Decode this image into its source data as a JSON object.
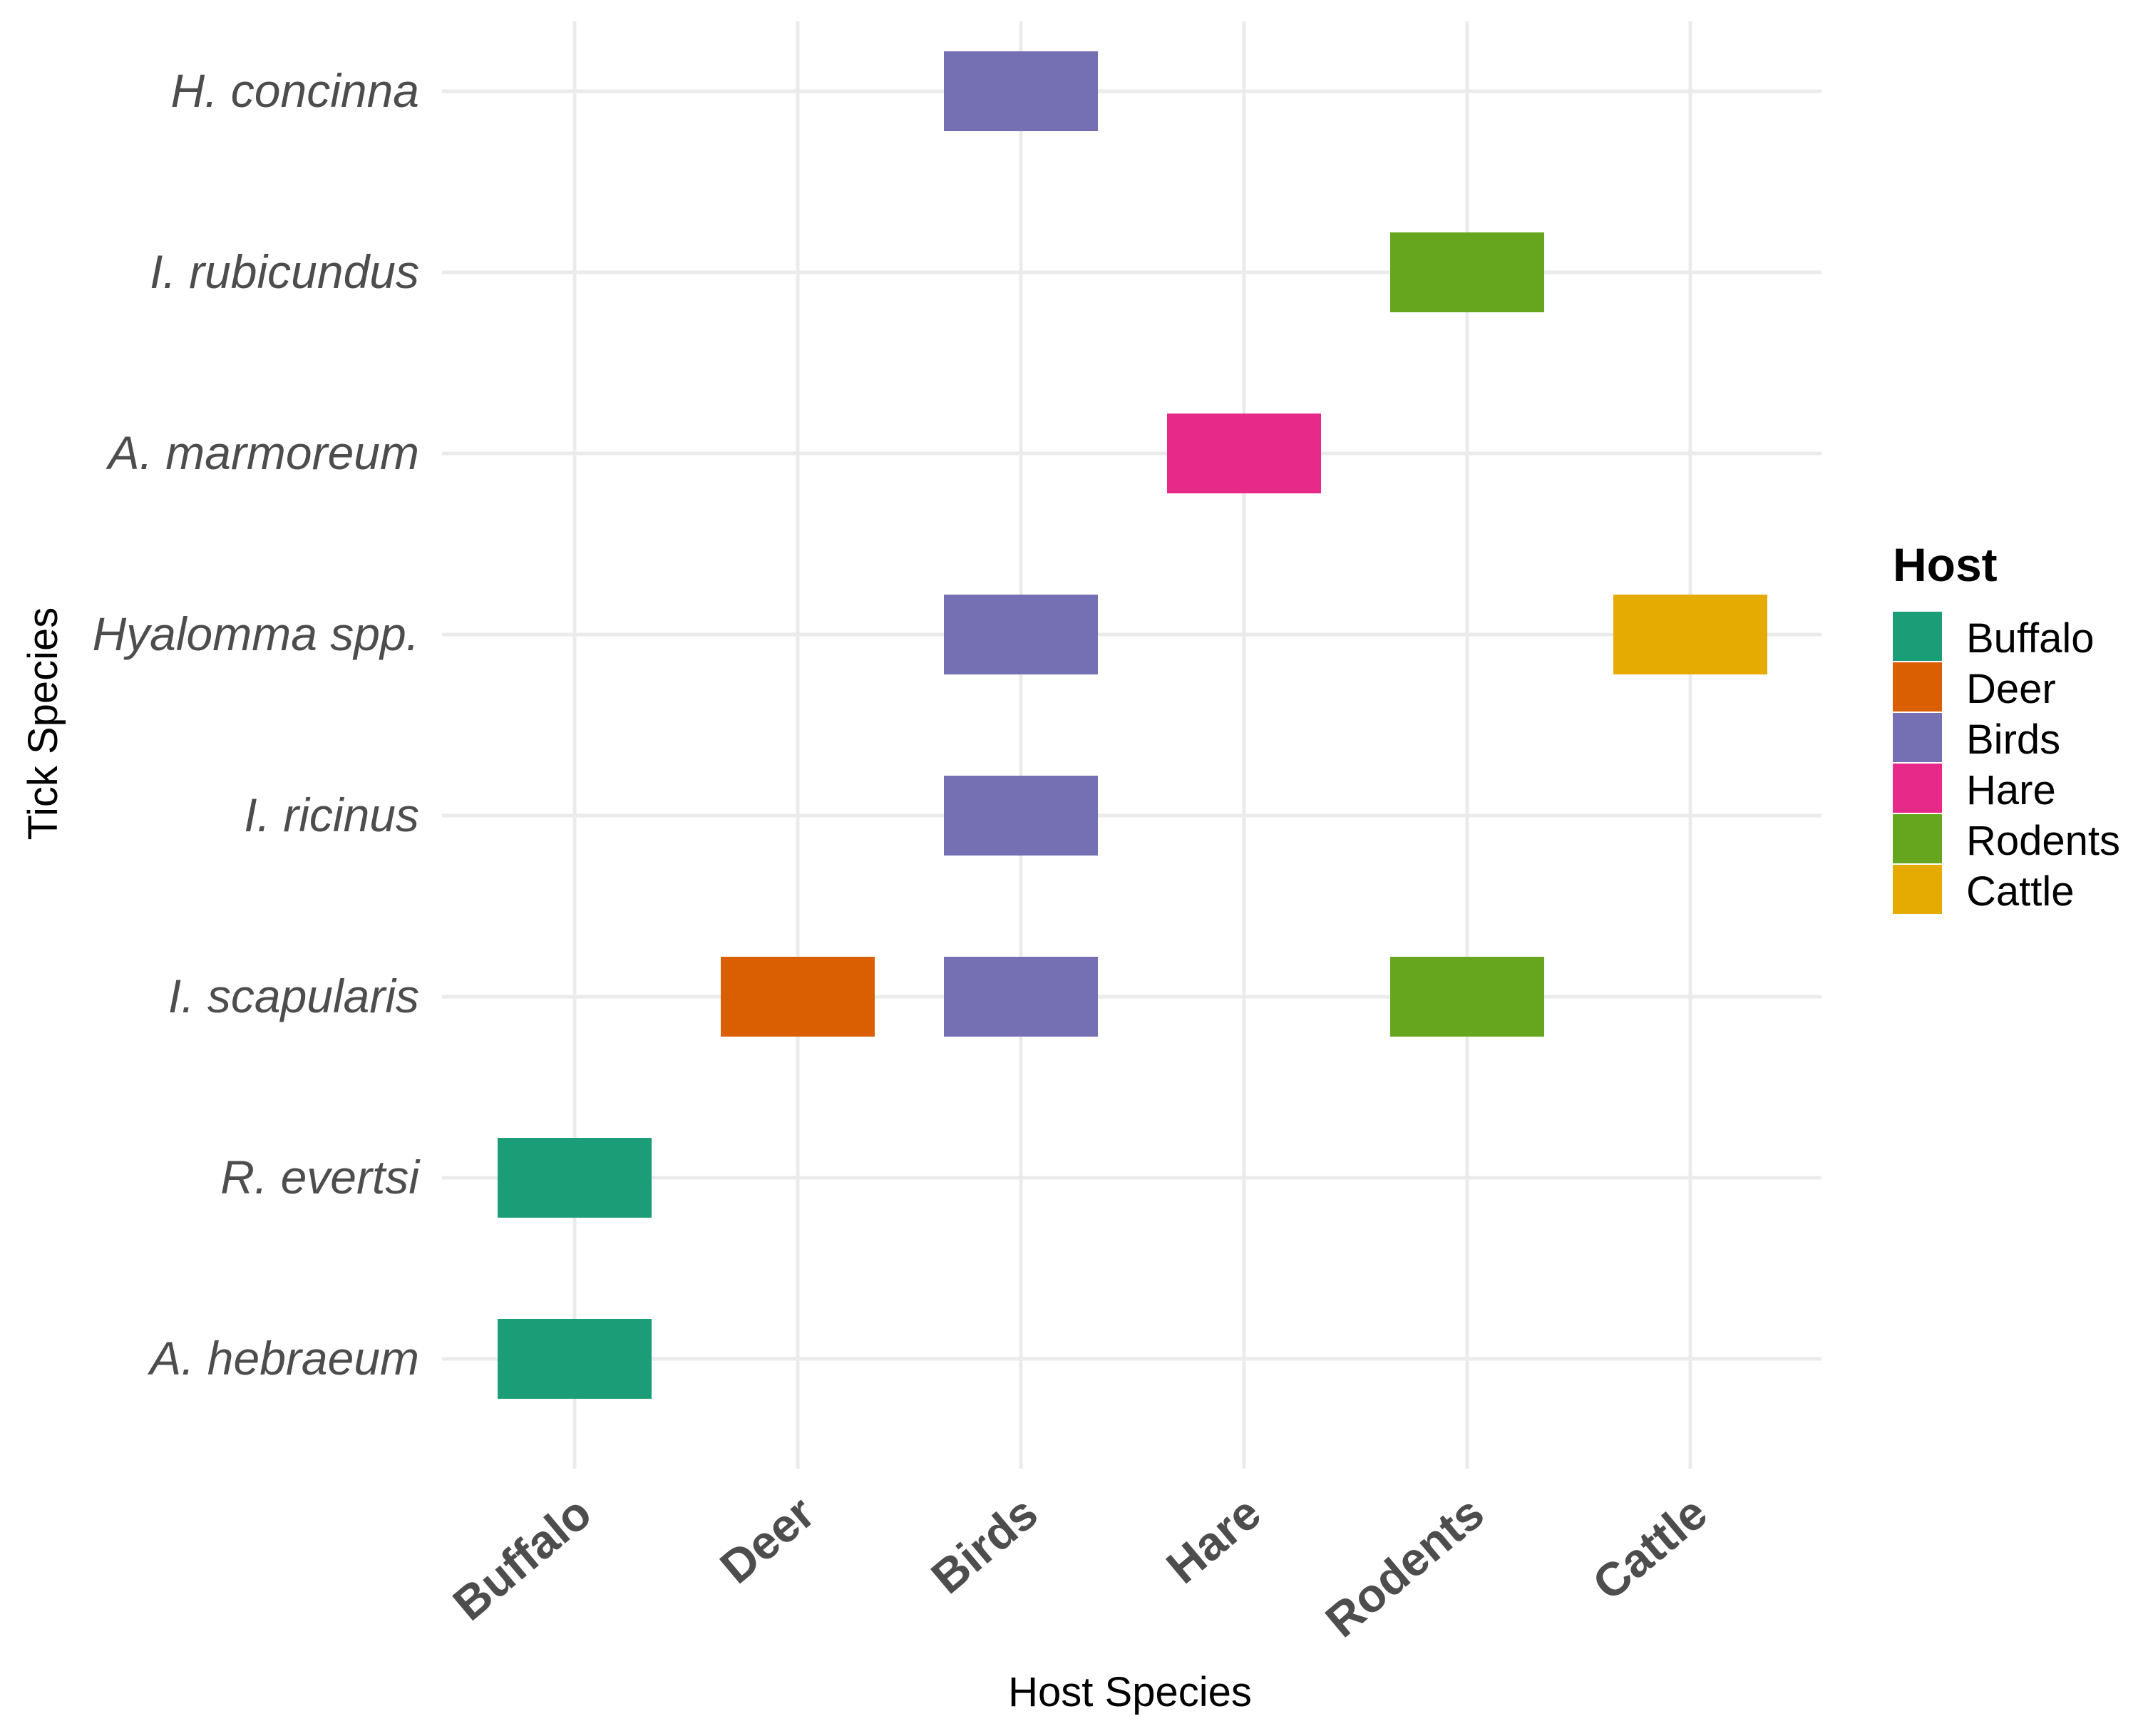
{
  "chart_data": {
    "type": "tile",
    "title": "",
    "xlabel": "Host Species",
    "ylabel": "Tick Species",
    "x_categories": [
      "Buffalo",
      "Deer",
      "Birds",
      "Hare",
      "Rodents",
      "Cattle"
    ],
    "y_categories": [
      "A. hebraeum",
      "R. evertsi",
      "I. scapularis",
      "I. ricinus",
      "Hyalomma spp.",
      "A. marmoreum",
      "I. rubicundus",
      "H. concinna"
    ],
    "points": [
      {
        "tick": "H. concinna",
        "host": "Birds"
      },
      {
        "tick": "I. rubicundus",
        "host": "Rodents"
      },
      {
        "tick": "A. marmoreum",
        "host": "Hare"
      },
      {
        "tick": "Hyalomma spp.",
        "host": "Birds"
      },
      {
        "tick": "Hyalomma spp.",
        "host": "Cattle"
      },
      {
        "tick": "I. ricinus",
        "host": "Birds"
      },
      {
        "tick": "I. scapularis",
        "host": "Deer"
      },
      {
        "tick": "I. scapularis",
        "host": "Birds"
      },
      {
        "tick": "I. scapularis",
        "host": "Rodents"
      },
      {
        "tick": "R. evertsi",
        "host": "Buffalo"
      },
      {
        "tick": "A. hebraeum",
        "host": "Buffalo"
      }
    ],
    "legend": {
      "title": "Host",
      "position": "right",
      "entries": [
        {
          "label": "Buffalo",
          "color": "#1b9e77"
        },
        {
          "label": "Deer",
          "color": "#d95f02"
        },
        {
          "label": "Birds",
          "color": "#7570b3"
        },
        {
          "label": "Hare",
          "color": "#e7298a"
        },
        {
          "label": "Rodents",
          "color": "#66a61e"
        },
        {
          "label": "Cattle",
          "color": "#e6ab02"
        }
      ]
    },
    "grid": true
  }
}
